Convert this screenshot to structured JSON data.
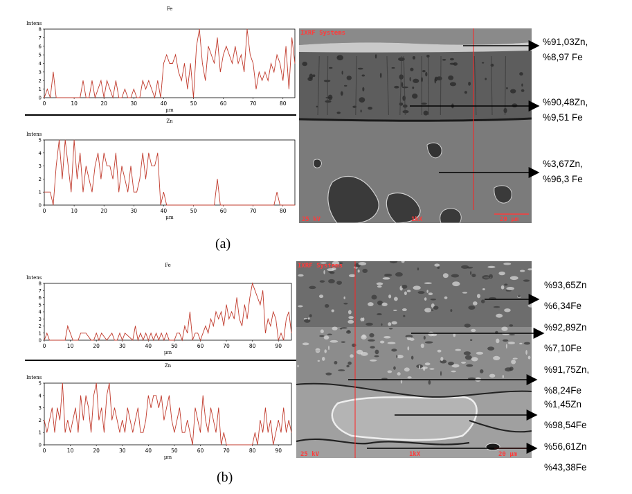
{
  "figure": {
    "panels": [
      {
        "id": "a",
        "caption": "(a)",
        "sem": {
          "brand": "IXRF Systems",
          "voltage": "25 kV",
          "magnification": "1kX",
          "scale": "20 µm",
          "annotations": [
            {
              "lines": [
                "%91,03Zn,",
                "%8,97 Fe"
              ]
            },
            {
              "lines": [
                "%90,48Zn,",
                "%9,51 Fe"
              ]
            },
            {
              "lines": [
                "%3,67Zn,",
                "%96,3 Fe"
              ]
            }
          ]
        },
        "chart_data": [
          {
            "type": "line",
            "title": "Fe",
            "ylabel": "Intens",
            "xlabel": "µm",
            "xlim": [
              0,
              84
            ],
            "ylim": [
              0,
              8
            ],
            "xticks": [
              0,
              10,
              20,
              30,
              40,
              50,
              60,
              70,
              80
            ],
            "yticks": [
              0,
              1,
              2,
              3,
              4,
              5,
              6,
              7,
              8
            ],
            "color": "#c0392b",
            "x": [
              0,
              1,
              2,
              3,
              4,
              5,
              7,
              9,
              12,
              13,
              14,
              15,
              16,
              17,
              18,
              19,
              20,
              21,
              22,
              23,
              24,
              25,
              26,
              27,
              28,
              29,
              30,
              31,
              32,
              33,
              34,
              35,
              36,
              37,
              38,
              39,
              40,
              41,
              42,
              43,
              44,
              45,
              46,
              47,
              48,
              49,
              50,
              51,
              52,
              53,
              54,
              55,
              56,
              57,
              58,
              59,
              60,
              61,
              62,
              63,
              64,
              65,
              66,
              67,
              68,
              69,
              70,
              71,
              72,
              73,
              74,
              75,
              76,
              77,
              78,
              79,
              80,
              81,
              82,
              83,
              84
            ],
            "y": [
              0,
              1,
              0,
              3,
              0,
              0,
              0,
              0,
              0,
              2,
              0,
              0,
              2,
              0,
              1,
              2,
              0,
              2,
              1,
              0,
              2,
              0,
              0,
              1,
              0,
              0,
              1,
              0,
              0,
              2,
              1,
              2,
              1,
              0,
              2,
              0,
              4,
              5,
              4,
              4,
              5,
              3,
              2,
              4,
              1,
              4,
              0,
              6,
              8,
              4,
              2,
              6,
              5,
              4,
              7,
              3,
              5,
              6,
              5,
              4,
              6,
              4,
              5,
              3,
              8,
              5,
              4,
              1,
              3,
              2,
              3,
              2,
              4,
              3,
              5,
              4,
              2,
              6,
              1,
              7,
              4
            ]
          },
          {
            "type": "line",
            "title": "Zn",
            "ylabel": "Intens",
            "xlabel": "µm",
            "xlim": [
              0,
              84
            ],
            "ylim": [
              0,
              5
            ],
            "xticks": [
              0,
              10,
              20,
              30,
              40,
              50,
              60,
              70,
              80
            ],
            "yticks": [
              0,
              1,
              2,
              3,
              4,
              5
            ],
            "color": "#c0392b",
            "x": [
              0,
              1,
              2,
              3,
              4,
              5,
              6,
              7,
              8,
              9,
              10,
              11,
              12,
              13,
              14,
              15,
              16,
              17,
              18,
              19,
              20,
              21,
              22,
              23,
              24,
              25,
              26,
              27,
              28,
              29,
              30,
              31,
              32,
              33,
              34,
              35,
              36,
              37,
              38,
              39,
              40,
              41,
              42,
              56,
              57,
              58,
              59,
              60,
              76,
              77,
              78,
              79,
              84
            ],
            "y": [
              1,
              1,
              1,
              0,
              3,
              5,
              2,
              5,
              3,
              1,
              5,
              2,
              4,
              1,
              3,
              2,
              1,
              3,
              4,
              2,
              4,
              3,
              3,
              2,
              4,
              1,
              3,
              2,
              1,
              3,
              1,
              1,
              2,
              4,
              2,
              4,
              3,
              3,
              4,
              0,
              1,
              0,
              0,
              0,
              0,
              2,
              0,
              0,
              0,
              0,
              1,
              0,
              0
            ]
          }
        ]
      },
      {
        "id": "b",
        "caption": "(b)",
        "sem": {
          "brand": "IXRF Systems",
          "voltage": "25 kV",
          "magnification": "1kX",
          "scale": "20 µm",
          "annotations": [
            {
              "lines": [
                "%93,65Zn",
                "%6,34Fe"
              ]
            },
            {
              "lines": [
                "%92,89Zn",
                "%7,10Fe"
              ]
            },
            {
              "lines": [
                "%91,75Zn,",
                "%8,24Fe"
              ]
            },
            {
              "lines": [
                "%1,45Zn",
                "%98,54Fe"
              ]
            },
            {
              "lines": [
                "%56,61Zn",
                "%43,38Fe"
              ]
            }
          ]
        },
        "chart_data": [
          {
            "type": "line",
            "title": "Fe",
            "ylabel": "Intens",
            "xlabel": "µm",
            "xlim": [
              0,
              95
            ],
            "ylim": [
              0,
              8
            ],
            "xticks": [
              0,
              10,
              20,
              30,
              40,
              50,
              60,
              70,
              80,
              90
            ],
            "yticks": [
              0,
              1,
              2,
              3,
              4,
              5,
              6,
              7,
              8
            ],
            "color": "#c0392b",
            "x": [
              0,
              1,
              2,
              3,
              8,
              9,
              10,
              11,
              13,
              14,
              16,
              18,
              19,
              20,
              21,
              22,
              24,
              26,
              27,
              28,
              29,
              30,
              31,
              34,
              35,
              36,
              37,
              38,
              39,
              40,
              41,
              42,
              43,
              44,
              45,
              46,
              47,
              48,
              50,
              51,
              52,
              53,
              54,
              55,
              56,
              57,
              58,
              59,
              60,
              61,
              62,
              63,
              64,
              65,
              66,
              67,
              68,
              69,
              70,
              71,
              72,
              73,
              74,
              75,
              76,
              77,
              78,
              79,
              80,
              81,
              82,
              83,
              84,
              85,
              86,
              87,
              88,
              89,
              90,
              91,
              92,
              93,
              94,
              95
            ],
            "y": [
              0,
              1,
              0,
              0,
              0,
              2,
              1,
              0,
              0,
              1,
              1,
              0,
              0,
              1,
              0,
              1,
              0,
              1,
              0,
              0,
              1,
              0,
              1,
              0,
              2,
              0,
              1,
              0,
              1,
              0,
              1,
              0,
              1,
              0,
              1,
              0,
              1,
              0,
              0,
              1,
              1,
              0,
              2,
              1,
              4,
              0,
              1,
              1,
              0,
              1,
              2,
              1,
              3,
              2,
              4,
              3,
              4,
              2,
              5,
              3,
              4,
              3,
              6,
              3,
              2,
              5,
              3,
              6,
              8,
              7,
              6,
              5,
              7,
              1,
              3,
              2,
              4,
              3,
              0,
              1,
              0,
              3,
              4,
              1
            ]
          },
          {
            "type": "line",
            "title": "Zn",
            "ylabel": "Intens",
            "xlabel": "µm",
            "xlim": [
              0,
              95
            ],
            "ylim": [
              0,
              5
            ],
            "xticks": [
              0,
              10,
              20,
              30,
              40,
              50,
              60,
              70,
              80,
              90
            ],
            "yticks": [
              0,
              1,
              2,
              3,
              4,
              5
            ],
            "color": "#c0392b",
            "x": [
              0,
              1,
              2,
              3,
              4,
              5,
              6,
              7,
              8,
              9,
              10,
              11,
              12,
              13,
              14,
              15,
              16,
              17,
              18,
              19,
              20,
              21,
              22,
              23,
              24,
              25,
              26,
              27,
              28,
              29,
              30,
              31,
              32,
              33,
              34,
              35,
              36,
              37,
              38,
              39,
              40,
              41,
              42,
              43,
              44,
              45,
              46,
              47,
              48,
              49,
              50,
              51,
              52,
              53,
              54,
              55,
              56,
              57,
              58,
              59,
              60,
              61,
              62,
              63,
              64,
              65,
              66,
              67,
              68,
              69,
              70,
              71,
              72,
              80,
              81,
              82,
              83,
              84,
              85,
              86,
              87,
              88,
              89,
              90,
              91,
              92,
              93,
              94,
              95
            ],
            "y": [
              2,
              1,
              2,
              3,
              1,
              3,
              2,
              5,
              1,
              2,
              1,
              2,
              3,
              1,
              4,
              2,
              4,
              3,
              1,
              4,
              5,
              2,
              3,
              1,
              4,
              5,
              2,
              3,
              2,
              1,
              2,
              1,
              3,
              2,
              1,
              2,
              3,
              1,
              1,
              2,
              4,
              3,
              4,
              4,
              3,
              4,
              2,
              3,
              4,
              2,
              1,
              2,
              3,
              1,
              1,
              2,
              1,
              0,
              3,
              2,
              1,
              4,
              2,
              1,
              3,
              2,
              1,
              3,
              0,
              1,
              0,
              0,
              0,
              0,
              1,
              0,
              2,
              1,
              3,
              1,
              2,
              0,
              1,
              2,
              1,
              3,
              1,
              2,
              1
            ]
          }
        ]
      }
    ]
  }
}
